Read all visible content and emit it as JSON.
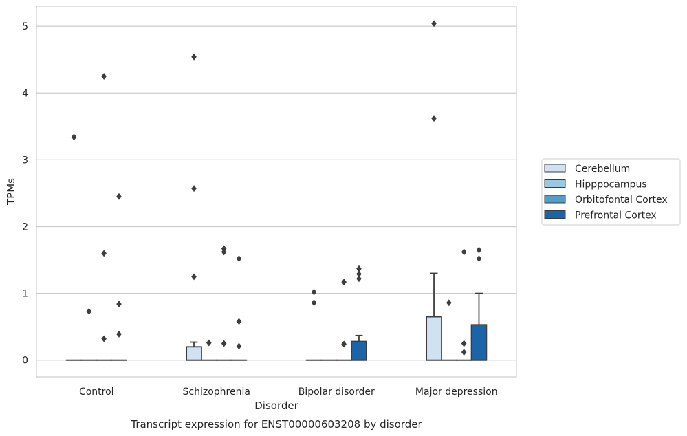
{
  "chart_data": {
    "type": "box",
    "caption": "Transcript expression for ENST00000603208 by disorder",
    "xlabel": "Disorder",
    "ylabel": "TPMs",
    "ylim": [
      -0.25,
      5.3
    ],
    "yticks": [
      0,
      1,
      2,
      3,
      4,
      5
    ],
    "grid": "horizontal",
    "legend_position": "right",
    "categories": [
      "Control",
      "Schizophrenia",
      "Bipolar disorder",
      "Major depression"
    ],
    "series": [
      {
        "name": "Cerebellum",
        "color": "#d0e1f2",
        "boxes": [
          {
            "q1": 0,
            "median": 0,
            "q3": 0,
            "whisker_low": 0,
            "whisker_high": 0,
            "outliers": [
              3.34
            ]
          },
          {
            "q1": 0,
            "median": 0,
            "q3": 0.2,
            "whisker_low": 0,
            "whisker_high": 0.27,
            "outliers": [
              4.54,
              2.57,
              1.25
            ]
          },
          {
            "q1": 0,
            "median": 0,
            "q3": 0,
            "whisker_low": 0,
            "whisker_high": 0,
            "outliers": [
              1.02,
              0.86
            ]
          },
          {
            "q1": 0,
            "median": 0,
            "q3": 0.65,
            "whisker_low": 0,
            "whisker_high": 1.3,
            "outliers": [
              5.04,
              3.62
            ]
          }
        ]
      },
      {
        "name": "Hipppocampus",
        "color": "#9ac8e0",
        "boxes": [
          {
            "q1": 0,
            "median": 0,
            "q3": 0,
            "whisker_low": 0,
            "whisker_high": 0,
            "outliers": [
              0.73
            ]
          },
          {
            "q1": 0,
            "median": 0,
            "q3": 0,
            "whisker_low": 0,
            "whisker_high": 0,
            "outliers": [
              0.26
            ]
          },
          {
            "q1": 0,
            "median": 0,
            "q3": 0,
            "whisker_low": 0,
            "whisker_high": 0,
            "outliers": []
          },
          {
            "q1": 0,
            "median": 0,
            "q3": 0,
            "whisker_low": 0,
            "whisker_high": 0,
            "outliers": [
              0.86
            ]
          }
        ]
      },
      {
        "name": "Orbitofontal Cortex",
        "color": "#529dcc",
        "boxes": [
          {
            "q1": 0,
            "median": 0,
            "q3": 0,
            "whisker_low": 0,
            "whisker_high": 0,
            "outliers": [
              4.25,
              1.6,
              0.32
            ]
          },
          {
            "q1": 0,
            "median": 0,
            "q3": 0,
            "whisker_low": 0,
            "whisker_high": 0,
            "outliers": [
              1.67,
              1.62,
              0.25
            ]
          },
          {
            "q1": 0,
            "median": 0,
            "q3": 0,
            "whisker_low": 0,
            "whisker_high": 0,
            "outliers": [
              1.17,
              0.24
            ]
          },
          {
            "q1": 0,
            "median": 0,
            "q3": 0,
            "whisker_low": 0,
            "whisker_high": 0,
            "outliers": [
              1.62,
              0.25,
              0.12
            ]
          }
        ]
      },
      {
        "name": "Prefrontal Cortex",
        "color": "#1c64a8",
        "boxes": [
          {
            "q1": 0,
            "median": 0,
            "q3": 0,
            "whisker_low": 0,
            "whisker_high": 0,
            "outliers": [
              2.45,
              0.84,
              0.39
            ]
          },
          {
            "q1": 0,
            "median": 0,
            "q3": 0,
            "whisker_low": 0,
            "whisker_high": 0,
            "outliers": [
              1.52,
              0.58,
              0.21
            ]
          },
          {
            "q1": 0,
            "median": 0,
            "q3": 0.28,
            "whisker_low": 0,
            "whisker_high": 0.37,
            "outliers": [
              1.37,
              1.29,
              1.22
            ]
          },
          {
            "q1": 0,
            "median": 0,
            "q3": 0.53,
            "whisker_low": 0,
            "whisker_high": 1.0,
            "outliers": [
              1.65,
              1.52
            ]
          }
        ]
      }
    ]
  }
}
